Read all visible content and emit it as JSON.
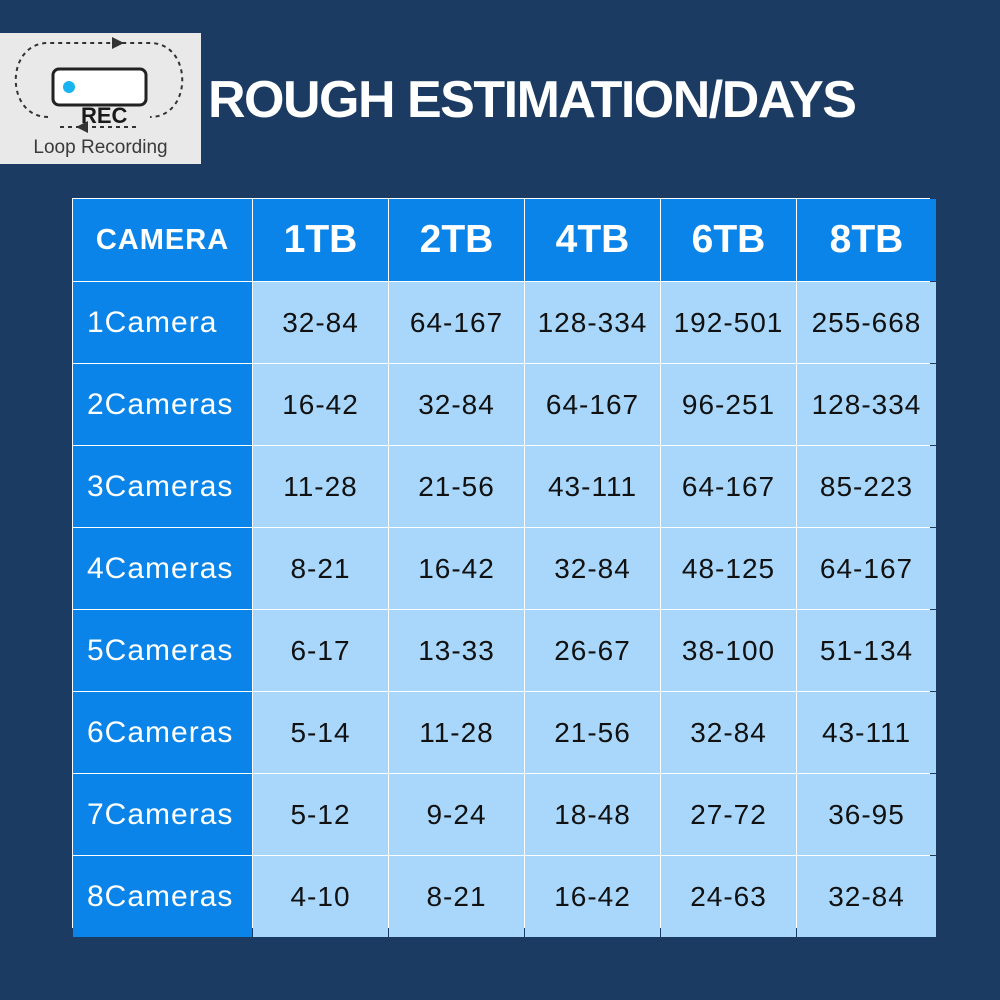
{
  "logo": {
    "rec_label": "REC",
    "caption": "Loop Recording",
    "dot_color": "#19b3f0"
  },
  "title": "ROUGH ESTIMATION/DAYS",
  "chart_data": {
    "type": "table",
    "title": "ROUGH ESTIMATION/DAYS",
    "columns": [
      "CAMERA",
      "1TB",
      "2TB",
      "4TB",
      "6TB",
      "8TB"
    ],
    "rows": [
      [
        "1Camera",
        "32-84",
        "64-167",
        "128-334",
        "192-501",
        "255-668"
      ],
      [
        "2Cameras",
        "16-42",
        "32-84",
        "64-167",
        "96-251",
        "128-334"
      ],
      [
        "3Cameras",
        "11-28",
        "21-56",
        "43-111",
        "64-167",
        "85-223"
      ],
      [
        "4Cameras",
        "8-21",
        "16-42",
        "32-84",
        "48-125",
        "64-167"
      ],
      [
        "5Cameras",
        "6-17",
        "13-33",
        "26-67",
        "38-100",
        "51-134"
      ],
      [
        "6Cameras",
        "5-14",
        "11-28",
        "21-56",
        "32-84",
        "43-111"
      ],
      [
        "7Cameras",
        "5-12",
        "9-24",
        "18-48",
        "27-72",
        "36-95"
      ],
      [
        "8Cameras",
        "4-10",
        "8-21",
        "16-42",
        "24-63",
        "32-84"
      ]
    ]
  }
}
